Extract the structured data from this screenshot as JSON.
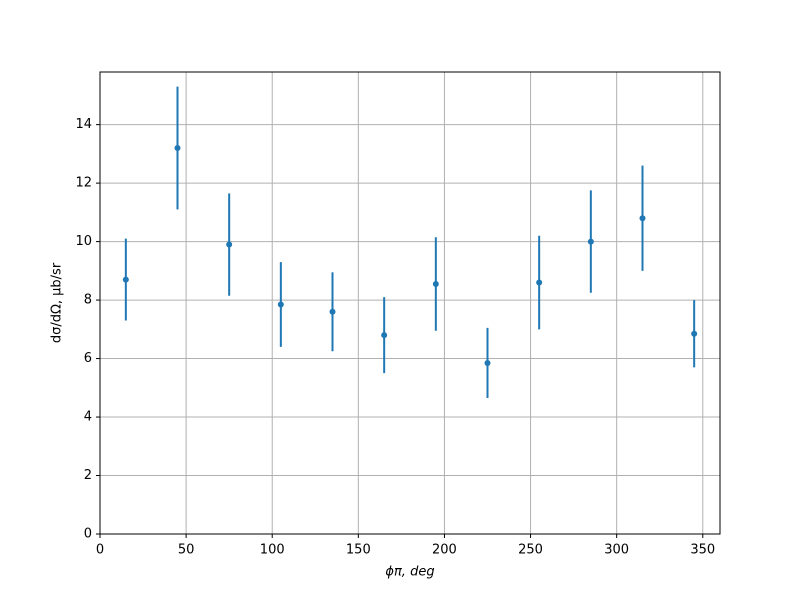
{
  "chart_data": {
    "type": "errorbar",
    "xlabel": "ϕπ, deg",
    "ylabel": "dσ/dΩ, μb/sr",
    "x": [
      15,
      45,
      75,
      105,
      135,
      165,
      195,
      225,
      255,
      285,
      315,
      345
    ],
    "values": [
      8.7,
      13.2,
      9.9,
      7.85,
      7.6,
      6.8,
      8.55,
      5.85,
      8.6,
      10.0,
      10.8,
      6.85
    ],
    "errors": [
      1.4,
      2.1,
      1.75,
      1.45,
      1.35,
      1.3,
      1.6,
      1.2,
      1.6,
      1.75,
      1.8,
      1.15
    ],
    "color": "#1f77b4",
    "xlim": [
      0,
      360
    ],
    "xticks": [
      0,
      50,
      100,
      150,
      200,
      250,
      300,
      350
    ],
    "ylim": [
      0,
      15.8
    ],
    "yticks": [
      0,
      2,
      4,
      6,
      8,
      10,
      12,
      14
    ],
    "grid": true
  }
}
